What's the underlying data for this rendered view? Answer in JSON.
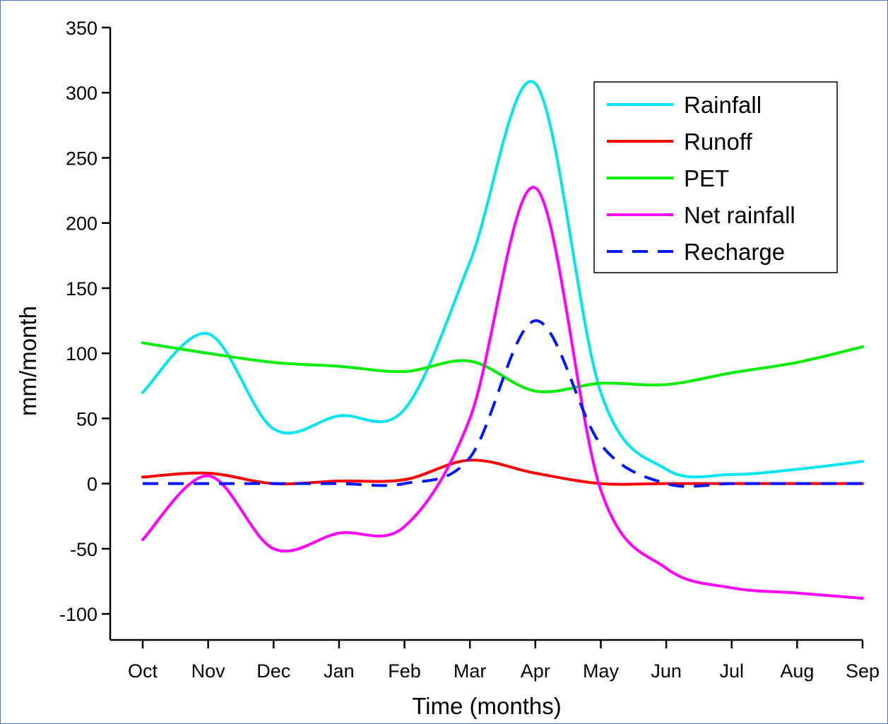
{
  "chart_data": {
    "type": "line",
    "xlabel": "Time (months)",
    "ylabel": "mm/month",
    "categories": [
      "Oct",
      "Nov",
      "Dec",
      "Jan",
      "Feb",
      "Mar",
      "Apr",
      "May",
      "Jun",
      "Jul",
      "Aug",
      "Sep"
    ],
    "ylim": [
      -120,
      350
    ],
    "yticks": [
      350,
      300,
      250,
      200,
      150,
      100,
      50,
      0,
      -50,
      -100
    ],
    "grid": false,
    "legend_position": "top-right",
    "series": [
      {
        "name": "Rainfall",
        "color": "#00e5f0",
        "dash": "solid",
        "values": [
          70,
          115,
          42,
          52,
          57,
          170,
          307,
          70,
          11,
          7,
          11,
          17
        ]
      },
      {
        "name": "Runoff",
        "color": "#ff0000",
        "dash": "solid",
        "values": [
          5,
          8,
          0,
          2,
          3,
          18,
          8,
          0,
          0,
          0,
          0,
          0
        ]
      },
      {
        "name": "PET",
        "color": "#00ee00",
        "dash": "solid",
        "values": [
          108,
          100,
          93,
          90,
          86,
          94,
          71,
          77,
          76,
          85,
          93,
          105
        ]
      },
      {
        "name": "Net rainfall",
        "color": "#ff00ff",
        "dash": "solid",
        "values": [
          -43,
          6,
          -50,
          -38,
          -33,
          50,
          227,
          -5,
          -65,
          -80,
          -84,
          -88
        ]
      },
      {
        "name": "Recharge",
        "color": "#0018ff",
        "dash": "dashed",
        "values": [
          0,
          0,
          0,
          0,
          0,
          20,
          125,
          30,
          0,
          0,
          0,
          0
        ]
      }
    ]
  }
}
